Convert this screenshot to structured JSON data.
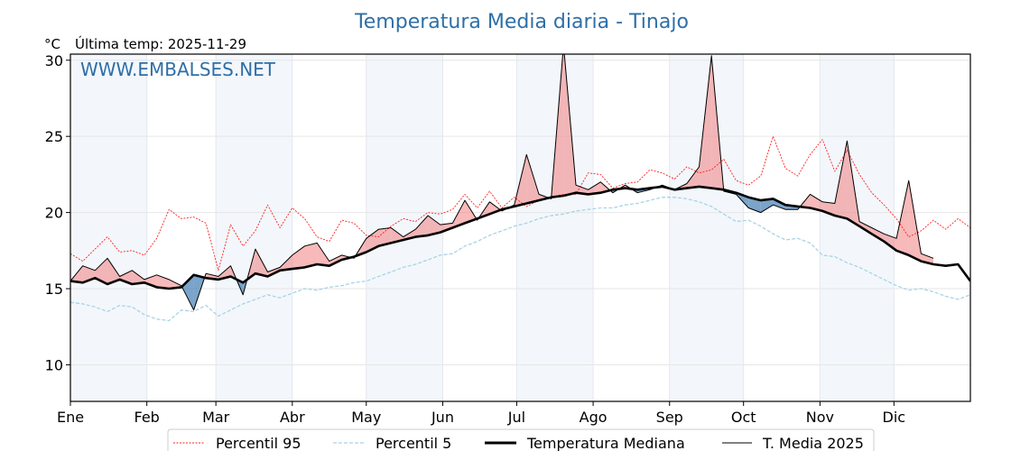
{
  "chart_data": {
    "type": "line",
    "title": "Temperatura Media diaria - Tinajo",
    "unit_label": "°C",
    "subtitle": "Última temp: 2025-11-29",
    "watermark": "WWW.EMBALSES.NET",
    "xlabel": "",
    "ylabel": "°C",
    "xlim": [
      0,
      365
    ],
    "ylim": [
      7.6,
      30.4
    ],
    "yticks": [
      10,
      15,
      20,
      25,
      30
    ],
    "ytick_labels": [
      "10",
      "15",
      "20",
      "25",
      "30"
    ],
    "month_ticks": [
      0,
      31,
      59,
      90,
      120,
      151,
      181,
      212,
      243,
      273,
      304,
      334
    ],
    "month_labels": [
      "Ene",
      "Feb",
      "Mar",
      "Abr",
      "May",
      "Jun",
      "Jul",
      "Ago",
      "Sep",
      "Oct",
      "Nov",
      "Dic"
    ],
    "grid": true,
    "legend_position": "bottom",
    "x": [
      0,
      5,
      10,
      15,
      20,
      25,
      30,
      35,
      40,
      45,
      50,
      55,
      60,
      65,
      70,
      75,
      80,
      85,
      90,
      95,
      100,
      105,
      110,
      115,
      120,
      125,
      130,
      135,
      140,
      145,
      150,
      155,
      160,
      165,
      170,
      175,
      180,
      185,
      190,
      195,
      200,
      205,
      210,
      215,
      220,
      225,
      230,
      235,
      240,
      245,
      250,
      255,
      260,
      265,
      270,
      275,
      280,
      285,
      290,
      295,
      300,
      305,
      310,
      315,
      320,
      325,
      330,
      335,
      340,
      345,
      350,
      355,
      360,
      365
    ],
    "series": [
      {
        "name": "Percentil 95",
        "color": "#ff2020",
        "style": "dotted",
        "values": [
          17.3,
          16.8,
          17.6,
          18.4,
          17.4,
          17.5,
          17.2,
          18.3,
          20.2,
          19.6,
          19.7,
          19.3,
          16.2,
          19.2,
          17.8,
          18.8,
          20.5,
          19.0,
          20.3,
          19.6,
          18.4,
          18.1,
          19.5,
          19.3,
          18.5,
          18.4,
          19.1,
          19.6,
          19.4,
          20.0,
          19.9,
          20.2,
          21.2,
          20.3,
          21.4,
          20.3,
          21.0,
          20.4,
          20.8,
          21.0,
          21.2,
          21.2,
          22.6,
          22.5,
          21.6,
          21.9,
          22.0,
          22.8,
          22.6,
          22.2,
          23.0,
          22.6,
          22.8,
          23.5,
          22.1,
          21.8,
          22.4,
          25.0,
          22.9,
          22.4,
          23.8,
          24.8,
          22.7,
          24.1,
          22.5,
          21.3,
          20.5,
          19.6,
          18.4,
          18.8,
          19.5,
          18.9,
          19.6,
          19.0
        ]
      },
      {
        "name": "Percentil 5",
        "color": "#a8d4e6",
        "style": "dashed",
        "values": [
          14.1,
          14.0,
          13.8,
          13.5,
          13.9,
          13.8,
          13.3,
          13.0,
          12.9,
          13.6,
          13.5,
          13.9,
          13.2,
          13.6,
          14.0,
          14.3,
          14.6,
          14.4,
          14.7,
          15.0,
          14.9,
          15.1,
          15.2,
          15.4,
          15.5,
          15.8,
          16.1,
          16.4,
          16.6,
          16.9,
          17.2,
          17.3,
          17.8,
          18.1,
          18.5,
          18.8,
          19.1,
          19.3,
          19.6,
          19.8,
          19.9,
          20.1,
          20.2,
          20.3,
          20.3,
          20.5,
          20.6,
          20.8,
          21.0,
          21.0,
          20.9,
          20.7,
          20.4,
          19.9,
          19.4,
          19.5,
          19.1,
          18.6,
          18.2,
          18.3,
          18.0,
          17.2,
          17.1,
          16.7,
          16.4,
          16.0,
          15.6,
          15.2,
          14.9,
          15.0,
          14.8,
          14.5,
          14.3,
          14.6
        ]
      },
      {
        "name": "Temperatura Mediana",
        "color": "#000000",
        "style": "solid-thick",
        "values": [
          15.5,
          15.4,
          15.7,
          15.3,
          15.6,
          15.3,
          15.4,
          15.1,
          15.0,
          15.1,
          15.9,
          15.7,
          15.6,
          15.8,
          15.4,
          16.0,
          15.8,
          16.2,
          16.3,
          16.4,
          16.6,
          16.5,
          16.9,
          17.1,
          17.4,
          17.8,
          18.0,
          18.2,
          18.4,
          18.5,
          18.7,
          19.0,
          19.3,
          19.6,
          19.9,
          20.2,
          20.4,
          20.6,
          20.8,
          21.0,
          21.1,
          21.3,
          21.2,
          21.3,
          21.5,
          21.6,
          21.5,
          21.6,
          21.7,
          21.5,
          21.6,
          21.7,
          21.6,
          21.5,
          21.3,
          21.0,
          20.8,
          20.9,
          20.5,
          20.4,
          20.3,
          20.1,
          19.8,
          19.6,
          19.1,
          18.6,
          18.1,
          17.5,
          17.2,
          16.8,
          16.6,
          16.5,
          16.6,
          15.5
        ]
      },
      {
        "name": "T. Media 2025",
        "color": "#000000",
        "style": "solid-thin",
        "values": [
          15.5,
          16.5,
          16.2,
          17.0,
          15.8,
          16.2,
          15.6,
          15.9,
          15.6,
          15.2,
          13.6,
          16.0,
          15.8,
          16.5,
          14.6,
          17.6,
          16.1,
          16.4,
          17.2,
          17.8,
          18.0,
          16.8,
          17.2,
          17.0,
          18.3,
          18.9,
          19.0,
          18.4,
          18.9,
          19.8,
          19.2,
          19.3,
          20.8,
          19.5,
          20.7,
          20.1,
          20.5,
          23.8,
          21.2,
          20.9,
          31.0,
          21.8,
          21.5,
          22.0,
          21.3,
          21.8,
          21.3,
          21.5,
          21.8,
          21.5,
          21.9,
          23.0,
          30.3,
          21.4,
          21.2,
          20.3,
          20.0,
          20.5,
          20.2,
          20.2,
          21.2,
          20.7,
          20.6,
          24.7,
          19.4,
          19.0,
          18.6,
          18.3,
          22.1,
          17.3,
          17.0,
          null,
          null,
          null
        ]
      }
    ],
    "fill_above_color": "#f08080",
    "fill_below_color": "#4f86b8"
  },
  "legend": {
    "items": [
      {
        "label": "Percentil 95"
      },
      {
        "label": "Percentil 5"
      },
      {
        "label": "Temperatura Mediana"
      },
      {
        "label": "T. Media 2025"
      }
    ]
  }
}
